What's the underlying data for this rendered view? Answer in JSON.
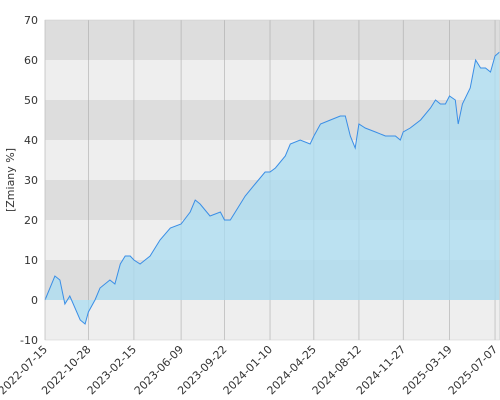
{
  "chart_data": {
    "type": "area",
    "y_label": "[Zmiany %]",
    "x": [
      "2022-07-15",
      "2022-08-08",
      "2022-08-20",
      "2022-09-01",
      "2022-09-13",
      "2022-10-08",
      "2022-10-20",
      "2022-10-28",
      "2022-11-13",
      "2022-11-25",
      "2022-12-19",
      "2022-12-31",
      "2023-01-13",
      "2023-01-25",
      "2023-02-06",
      "2023-02-15",
      "2023-03-02",
      "2023-03-14",
      "2023-03-26",
      "2023-04-19",
      "2023-05-14",
      "2023-06-09",
      "2023-07-01",
      "2023-07-13",
      "2023-07-25",
      "2023-08-18",
      "2023-09-12",
      "2023-09-22",
      "2023-10-06",
      "2023-10-18",
      "2023-11-11",
      "2023-12-05",
      "2023-12-29",
      "2024-01-10",
      "2024-01-23",
      "2024-02-16",
      "2024-02-28",
      "2024-03-23",
      "2024-04-16",
      "2024-04-25",
      "2024-05-11",
      "2024-06-04",
      "2024-06-28",
      "2024-07-10",
      "2024-07-22",
      "2024-08-03",
      "2024-08-12",
      "2024-08-27",
      "2024-09-21",
      "2024-10-15",
      "2024-11-08",
      "2024-11-20",
      "2024-11-27",
      "2024-12-14",
      "2025-01-08",
      "2025-02-01",
      "2025-02-13",
      "2025-02-25",
      "2025-03-09",
      "2025-03-19",
      "2025-04-02",
      "2025-04-09",
      "2025-04-19",
      "2025-05-08",
      "2025-05-21",
      "2025-06-02",
      "2025-06-14",
      "2025-06-26",
      "2025-07-07",
      "2025-07-18"
    ],
    "series": [
      {
        "color": "#3a8ee6",
        "fill": "#a9dcf2",
        "values": [
          0,
          6,
          5,
          -1,
          1,
          -5,
          -6,
          -3,
          0,
          3,
          5,
          4,
          9,
          11,
          11,
          10,
          9,
          10,
          11,
          15,
          18,
          19,
          22,
          25,
          24,
          21,
          22,
          20,
          20,
          22,
          26,
          29,
          32,
          32,
          33,
          36,
          39,
          40,
          39,
          41,
          44,
          45,
          46,
          46,
          41,
          38,
          44,
          43,
          42,
          41,
          41,
          40,
          42,
          43,
          45,
          48,
          50,
          49,
          49,
          51,
          50,
          44,
          49,
          53,
          60,
          58,
          58,
          57,
          61,
          62
        ]
      }
    ],
    "xlim": [
      "2022-07-15",
      "2025-07-19"
    ],
    "xticks": [
      "2022-07-15",
      "2022-10-28",
      "2023-02-15",
      "2023-06-09",
      "2023-09-22",
      "2024-01-10",
      "2024-04-25",
      "2024-08-12",
      "2024-11-27",
      "2025-03-19",
      "2025-07-07"
    ],
    "ylim": [
      -10,
      70
    ],
    "yticks": [
      -10,
      0,
      10,
      20,
      30,
      40,
      50,
      60,
      70
    ],
    "band_colors": [
      "#eeeeee",
      "#dddddd"
    ],
    "grid_color": "#aaaaaa"
  }
}
